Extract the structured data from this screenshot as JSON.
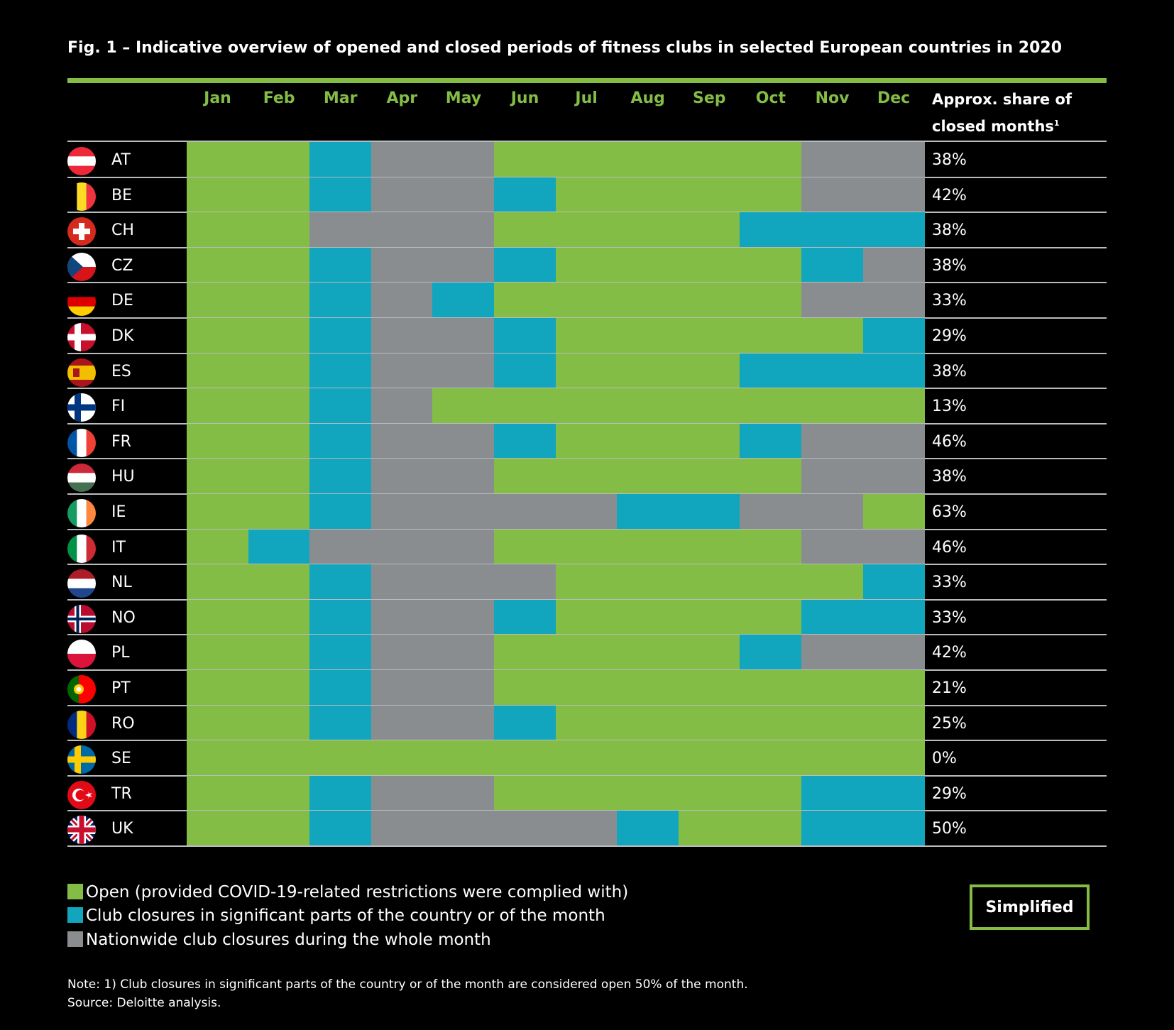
{
  "title": "Fig. 1 – Indicative overview of opened and closed periods of fitness clubs in selected European countries in 2020",
  "colors": {
    "open": "#84bd45",
    "partial": "#11a6bd",
    "closed": "#8a8d90",
    "accent": "#84bd45"
  },
  "chart_data": {
    "type": "table",
    "title": "Fig. 1 – Indicative overview of opened and closed periods of fitness clubs in selected European countries in 2020",
    "months": [
      "Jan",
      "Feb",
      "Mar",
      "Apr",
      "May",
      "Jun",
      "Jul",
      "Aug",
      "Sep",
      "Oct",
      "Nov",
      "Dec"
    ],
    "share_header_1": "Approx. share of",
    "share_header_2": "closed months",
    "share_header_sup": "1",
    "rows": [
      {
        "code": "AT",
        "flag": "austria-flag-icon",
        "status": [
          "O",
          "O",
          "P",
          "C",
          "C",
          "O",
          "O",
          "O",
          "O",
          "O",
          "C",
          "C"
        ],
        "share": "38%"
      },
      {
        "code": "BE",
        "flag": "belgium-flag-icon",
        "status": [
          "O",
          "O",
          "P",
          "C",
          "C",
          "P",
          "O",
          "O",
          "O",
          "O",
          "C",
          "C"
        ],
        "share": "42%"
      },
      {
        "code": "CH",
        "flag": "switzerland-flag-icon",
        "status": [
          "O",
          "O",
          "C",
          "C",
          "C",
          "O",
          "O",
          "O",
          "O",
          "P",
          "P",
          "P"
        ],
        "share": "38%"
      },
      {
        "code": "CZ",
        "flag": "czech-flag-icon",
        "status": [
          "O",
          "O",
          "P",
          "C",
          "C",
          "P",
          "O",
          "O",
          "O",
          "O",
          "P",
          "C"
        ],
        "share": "38%"
      },
      {
        "code": "DE",
        "flag": "germany-flag-icon",
        "status": [
          "O",
          "O",
          "P",
          "C",
          "P",
          "O",
          "O",
          "O",
          "O",
          "O",
          "C",
          "C"
        ],
        "share": "33%"
      },
      {
        "code": "DK",
        "flag": "denmark-flag-icon",
        "status": [
          "O",
          "O",
          "P",
          "C",
          "C",
          "P",
          "O",
          "O",
          "O",
          "O",
          "O",
          "P"
        ],
        "share": "29%"
      },
      {
        "code": "ES",
        "flag": "spain-flag-icon",
        "status": [
          "O",
          "O",
          "P",
          "C",
          "C",
          "P",
          "O",
          "O",
          "O",
          "P",
          "P",
          "P"
        ],
        "share": "38%"
      },
      {
        "code": "FI",
        "flag": "finland-flag-icon",
        "status": [
          "O",
          "O",
          "P",
          "C",
          "O",
          "O",
          "O",
          "O",
          "O",
          "O",
          "O",
          "O"
        ],
        "share": "13%"
      },
      {
        "code": "FR",
        "flag": "france-flag-icon",
        "status": [
          "O",
          "O",
          "P",
          "C",
          "C",
          "P",
          "O",
          "O",
          "O",
          "P",
          "C",
          "C"
        ],
        "share": "46%"
      },
      {
        "code": "HU",
        "flag": "hungary-flag-icon",
        "status": [
          "O",
          "O",
          "P",
          "C",
          "C",
          "O",
          "O",
          "O",
          "O",
          "O",
          "C",
          "C"
        ],
        "share": "38%"
      },
      {
        "code": "IE",
        "flag": "ireland-flag-icon",
        "status": [
          "O",
          "O",
          "P",
          "C",
          "C",
          "C",
          "C",
          "P",
          "P",
          "C",
          "C",
          "O"
        ],
        "share": "63%"
      },
      {
        "code": "IT",
        "flag": "italy-flag-icon",
        "status": [
          "O",
          "P",
          "C",
          "C",
          "C",
          "O",
          "O",
          "O",
          "O",
          "O",
          "C",
          "C"
        ],
        "share": "46%"
      },
      {
        "code": "NL",
        "flag": "netherlands-flag-icon",
        "status": [
          "O",
          "O",
          "P",
          "C",
          "C",
          "C",
          "O",
          "O",
          "O",
          "O",
          "O",
          "P"
        ],
        "share": "33%"
      },
      {
        "code": "NO",
        "flag": "norway-flag-icon",
        "status": [
          "O",
          "O",
          "P",
          "C",
          "C",
          "P",
          "O",
          "O",
          "O",
          "O",
          "P",
          "P"
        ],
        "share": "33%"
      },
      {
        "code": "PL",
        "flag": "poland-flag-icon",
        "status": [
          "O",
          "O",
          "P",
          "C",
          "C",
          "O",
          "O",
          "O",
          "O",
          "P",
          "C",
          "C"
        ],
        "share": "42%"
      },
      {
        "code": "PT",
        "flag": "portugal-flag-icon",
        "status": [
          "O",
          "O",
          "P",
          "C",
          "C",
          "O",
          "O",
          "O",
          "O",
          "O",
          "O",
          "O"
        ],
        "share": "21%"
      },
      {
        "code": "RO",
        "flag": "romania-flag-icon",
        "status": [
          "O",
          "O",
          "P",
          "C",
          "C",
          "P",
          "O",
          "O",
          "O",
          "O",
          "O",
          "O"
        ],
        "share": "25%"
      },
      {
        "code": "SE",
        "flag": "sweden-flag-icon",
        "status": [
          "O",
          "O",
          "O",
          "O",
          "O",
          "O",
          "O",
          "O",
          "O",
          "O",
          "O",
          "O"
        ],
        "share": "0%"
      },
      {
        "code": "TR",
        "flag": "turkey-flag-icon",
        "status": [
          "O",
          "O",
          "P",
          "C",
          "C",
          "O",
          "O",
          "O",
          "O",
          "O",
          "P",
          "P"
        ],
        "share": "29%"
      },
      {
        "code": "UK",
        "flag": "uk-flag-icon",
        "status": [
          "O",
          "O",
          "P",
          "C",
          "C",
          "C",
          "C",
          "P",
          "O",
          "O",
          "P",
          "P"
        ],
        "share": "50%"
      }
    ]
  },
  "legend": {
    "open": "Open (provided COVID-19-related restrictions were complied with)",
    "partial": "Club closures in significant parts of the country or of the month",
    "closed": "Nationwide club closures during the whole month"
  },
  "badge": "Simplified",
  "note": "Note: 1) Club closures in significant parts of the country or of the month are considered open 50% of the month.",
  "source": "Source: Deloitte analysis."
}
